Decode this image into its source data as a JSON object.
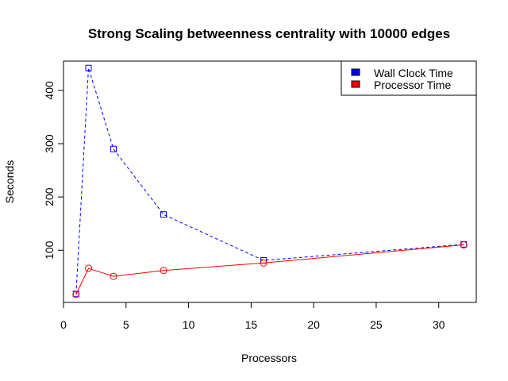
{
  "chart_data": {
    "type": "line",
    "title": "Strong Scaling betweenness centrality with 10000 edges",
    "xlabel": "Processors",
    "ylabel": "Seconds",
    "xlim": [
      0,
      33
    ],
    "ylim": [
      2,
      455
    ],
    "x_ticks": [
      0,
      5,
      10,
      15,
      20,
      25,
      30
    ],
    "y_ticks": [
      100,
      200,
      300,
      400
    ],
    "grid": false,
    "legend_position": "top-right",
    "series": [
      {
        "name": "Wall Clock Time",
        "color": "#0000ff",
        "line_style": "dashed",
        "marker": "square",
        "x": [
          1,
          2,
          4,
          8,
          16,
          32
        ],
        "y": [
          18,
          442,
          290,
          167,
          81,
          111
        ]
      },
      {
        "name": "Processor Time",
        "color": "#ff0000",
        "line_style": "solid",
        "marker": "circle",
        "x": [
          1,
          2,
          4,
          8,
          16,
          32
        ],
        "y": [
          17,
          66,
          51,
          62,
          76,
          110
        ]
      }
    ]
  }
}
